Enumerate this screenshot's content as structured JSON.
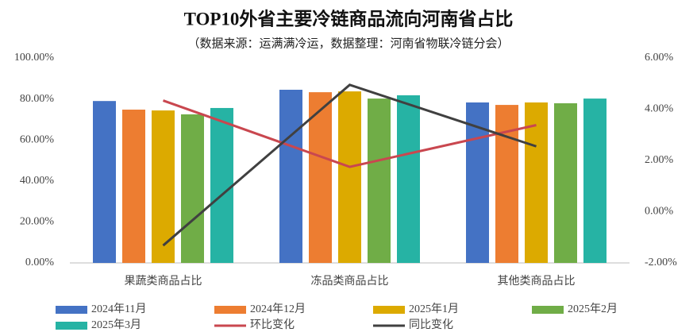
{
  "chart_data": {
    "type": "bar",
    "title": "TOP10外省主要冷链商品流向河南省占比",
    "subtitle": "（数据来源：运满满冷运，数据整理：河南省物联冷链分会）",
    "categories": [
      "果蔬类商品占比",
      "冻品类商品占比",
      "其他类商品占比"
    ],
    "series": [
      {
        "name": "2024年11月",
        "color": "#4472c4",
        "values": [
          79,
          84.5,
          78.3
        ]
      },
      {
        "name": "2024年12月",
        "color": "#ed7d31",
        "values": [
          74.8,
          83.3,
          77.1
        ]
      },
      {
        "name": "2025年1月",
        "color": "#dcaa00",
        "values": [
          74.4,
          83.7,
          78.3
        ]
      },
      {
        "name": "2025年2月",
        "color": "#70ad47",
        "values": [
          72.5,
          80.2,
          77.9
        ]
      },
      {
        "name": "2025年3月",
        "color": "#26b3a4",
        "values": [
          75.6,
          81.8,
          80.2
        ]
      },
      {
        "name": "环比变化",
        "color": "#c9474f",
        "type": "line",
        "axis": "y2",
        "values": [
          4.34,
          1.75,
          3.38
        ]
      },
      {
        "name": "同比变化",
        "color": "#404040",
        "type": "line",
        "axis": "y2",
        "values": [
          -1.32,
          4.95,
          2.55
        ]
      }
    ],
    "ylim": [
      0,
      100
    ],
    "yticks": [
      {
        "value": 0,
        "label": "0.00%"
      },
      {
        "value": 20,
        "label": "20.00%"
      },
      {
        "value": 40,
        "label": "40.00%"
      },
      {
        "value": 60,
        "label": "60.00%"
      },
      {
        "value": 80,
        "label": "80.00%"
      },
      {
        "value": 100,
        "label": "100.00%"
      }
    ],
    "y2lim": [
      -2,
      6
    ],
    "y2ticks": [
      {
        "value": -2,
        "label": "-2.00%"
      },
      {
        "value": 0,
        "label": "0.00%"
      },
      {
        "value": 2,
        "label": "2.00%"
      },
      {
        "value": 4,
        "label": "4.00%"
      },
      {
        "value": 6,
        "label": "6.00%"
      }
    ],
    "grid": false
  }
}
